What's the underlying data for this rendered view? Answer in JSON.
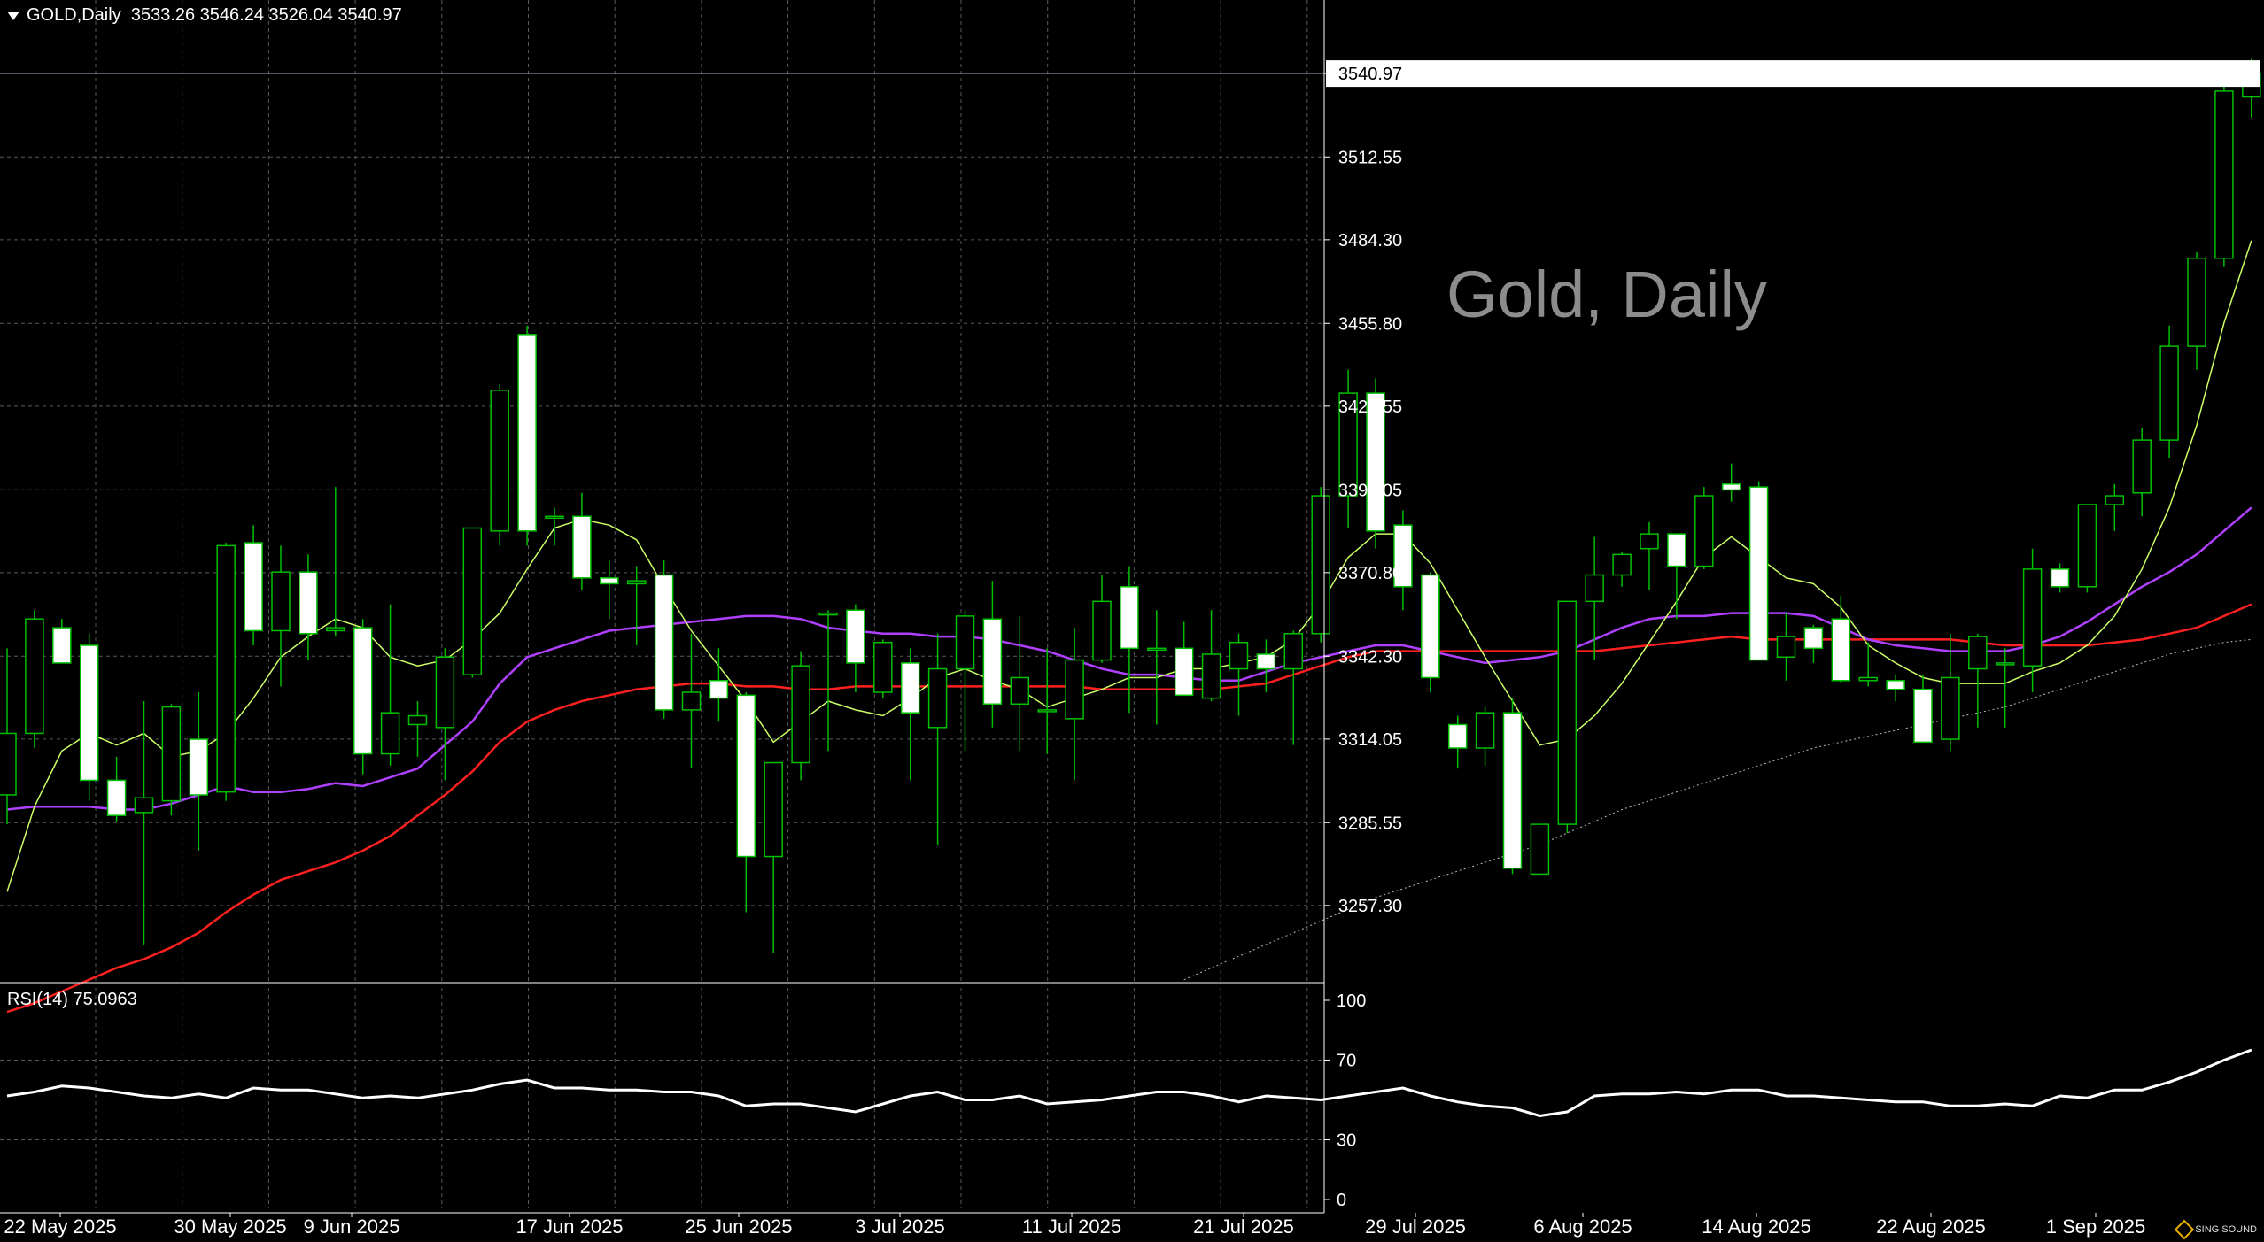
{
  "header": {
    "symbol": "GOLD,Daily",
    "open": "3533.26",
    "high": "3546.24",
    "low": "3526.04",
    "close": "3540.97"
  },
  "watermark": "Gold, Daily",
  "current_price_label": "3540.97",
  "rsi": {
    "label": "RSI(14)",
    "value": "75.0963"
  },
  "logo_text": "SING SOUND",
  "colors": {
    "background": "#000000",
    "grid": "#5a5a5a",
    "bull_candle": "#000000",
    "bear_candle": "#ffffff",
    "wick": "#00c000",
    "ma_fast": "#ccff66",
    "ma_mid": "#b040ff",
    "ma_slow": "#ff2020",
    "ma_long": "#bbbbbb",
    "rsi_line": "#ffffff",
    "text": "#ffffff"
  },
  "chart_data": {
    "type": "candlestick",
    "title": "GOLD,Daily",
    "ylim": [
      3231,
      3557
    ],
    "y_ticks": [
      "3540.97",
      "3512.55",
      "3484.30",
      "3455.80",
      "3427.55",
      "3399.05",
      "3370.80",
      "3342.30",
      "3314.05",
      "3285.55",
      "3257.30"
    ],
    "x_labels": [
      "22 May 2025",
      "30 May 2025",
      "9 Jun 2025",
      "17 Jun 2025",
      "25 Jun 2025",
      "3 Jul 2025",
      "11 Jul 2025",
      "21 Jul 2025",
      "29 Jul 2025",
      "6 Aug 2025",
      "14 Aug 2025",
      "22 Aug 2025",
      "1 Sep 2025"
    ],
    "candles": [
      {
        "o": 3295,
        "h": 3345,
        "l": 3285,
        "c": 3316
      },
      {
        "o": 3316,
        "h": 3358,
        "l": 3311,
        "c": 3355
      },
      {
        "o": 3352,
        "h": 3355,
        "l": 3340,
        "c": 3340
      },
      {
        "o": 3346,
        "h": 3350,
        "l": 3293,
        "c": 3300
      },
      {
        "o": 3300,
        "h": 3308,
        "l": 3286,
        "c": 3288
      },
      {
        "o": 3289,
        "h": 3327,
        "l": 3244,
        "c": 3294
      },
      {
        "o": 3293,
        "h": 3326,
        "l": 3288,
        "c": 3325
      },
      {
        "o": 3314,
        "h": 3330,
        "l": 3276,
        "c": 3295
      },
      {
        "o": 3296,
        "h": 3381,
        "l": 3293,
        "c": 3380
      },
      {
        "o": 3381,
        "h": 3387,
        "l": 3346,
        "c": 3351
      },
      {
        "o": 3351,
        "h": 3380,
        "l": 3332,
        "c": 3371
      },
      {
        "o": 3371,
        "h": 3377,
        "l": 3341,
        "c": 3350
      },
      {
        "o": 3351,
        "h": 3400,
        "l": 3349,
        "c": 3352
      },
      {
        "o": 3352,
        "h": 3355,
        "l": 3302,
        "c": 3309
      },
      {
        "o": 3309,
        "h": 3360,
        "l": 3305,
        "c": 3323
      },
      {
        "o": 3319,
        "h": 3327,
        "l": 3308,
        "c": 3322
      },
      {
        "o": 3318,
        "h": 3345,
        "l": 3300,
        "c": 3342
      },
      {
        "o": 3336,
        "h": 3386,
        "l": 3335,
        "c": 3386
      },
      {
        "o": 3385,
        "h": 3435,
        "l": 3380,
        "c": 3433
      },
      {
        "o": 3452,
        "h": 3455,
        "l": 3380,
        "c": 3385
      },
      {
        "o": 3390,
        "h": 3393,
        "l": 3380,
        "c": 3390
      },
      {
        "o": 3390,
        "h": 3398,
        "l": 3365,
        "c": 3369
      },
      {
        "o": 3369,
        "h": 3375,
        "l": 3355,
        "c": 3367
      },
      {
        "o": 3367,
        "h": 3373,
        "l": 3346,
        "c": 3368
      },
      {
        "o": 3370,
        "h": 3375,
        "l": 3321,
        "c": 3324
      },
      {
        "o": 3324,
        "h": 3350,
        "l": 3304,
        "c": 3330
      },
      {
        "o": 3334,
        "h": 3345,
        "l": 3320,
        "c": 3328
      },
      {
        "o": 3329,
        "h": 3330,
        "l": 3255,
        "c": 3274
      },
      {
        "o": 3274,
        "h": 3305,
        "l": 3241,
        "c": 3306
      },
      {
        "o": 3306,
        "h": 3344,
        "l": 3300,
        "c": 3339
      },
      {
        "o": 3357,
        "h": 3358,
        "l": 3310,
        "c": 3357
      },
      {
        "o": 3358,
        "h": 3360,
        "l": 3330,
        "c": 3340
      },
      {
        "o": 3330,
        "h": 3348,
        "l": 3328,
        "c": 3347
      },
      {
        "o": 3340,
        "h": 3345,
        "l": 3300,
        "c": 3323
      },
      {
        "o": 3318,
        "h": 3350,
        "l": 3278,
        "c": 3338
      },
      {
        "o": 3338,
        "h": 3358,
        "l": 3310,
        "c": 3356
      },
      {
        "o": 3355,
        "h": 3368,
        "l": 3318,
        "c": 3326
      },
      {
        "o": 3326,
        "h": 3356,
        "l": 3310,
        "c": 3335
      },
      {
        "o": 3324,
        "h": 3345,
        "l": 3309,
        "c": 3324
      },
      {
        "o": 3321,
        "h": 3352,
        "l": 3300,
        "c": 3341
      },
      {
        "o": 3341,
        "h": 3370,
        "l": 3340,
        "c": 3361
      },
      {
        "o": 3366,
        "h": 3373,
        "l": 3323,
        "c": 3345
      },
      {
        "o": 3345,
        "h": 3358,
        "l": 3319,
        "c": 3345
      },
      {
        "o": 3345,
        "h": 3354,
        "l": 3332,
        "c": 3329
      },
      {
        "o": 3328,
        "h": 3358,
        "l": 3327,
        "c": 3343
      },
      {
        "o": 3338,
        "h": 3350,
        "l": 3322,
        "c": 3347
      },
      {
        "o": 3343,
        "h": 3348,
        "l": 3330,
        "c": 3338
      },
      {
        "o": 3338,
        "h": 3351,
        "l": 3312,
        "c": 3350
      },
      {
        "o": 3350,
        "h": 3400,
        "l": 3347,
        "c": 3397
      },
      {
        "o": 3397,
        "h": 3440,
        "l": 3386,
        "c": 3432
      },
      {
        "o": 3432,
        "h": 3437,
        "l": 3379,
        "c": 3385
      },
      {
        "o": 3387,
        "h": 3392,
        "l": 3358,
        "c": 3366
      },
      {
        "o": 3370,
        "h": 3371,
        "l": 3330,
        "c": 3335
      },
      {
        "o": 3319,
        "h": 3322,
        "l": 3304,
        "c": 3311
      },
      {
        "o": 3311,
        "h": 3325,
        "l": 3305,
        "c": 3323
      },
      {
        "o": 3323,
        "h": 3328,
        "l": 3268,
        "c": 3270
      },
      {
        "o": 3268,
        "h": 3283,
        "l": 3270,
        "c": 3285
      },
      {
        "o": 3285,
        "h": 3361,
        "l": 3282,
        "c": 3361
      },
      {
        "o": 3361,
        "h": 3383,
        "l": 3341,
        "c": 3370
      },
      {
        "o": 3370,
        "h": 3378,
        "l": 3366,
        "c": 3377
      },
      {
        "o": 3379,
        "h": 3388,
        "l": 3365,
        "c": 3384
      },
      {
        "o": 3384,
        "h": 3383,
        "l": 3355,
        "c": 3373
      },
      {
        "o": 3373,
        "h": 3400,
        "l": 3372,
        "c": 3397
      },
      {
        "o": 3401,
        "h": 3408,
        "l": 3395,
        "c": 3399
      },
      {
        "o": 3400,
        "h": 3402,
        "l": 3342,
        "c": 3341
      },
      {
        "o": 3342,
        "h": 3357,
        "l": 3334,
        "c": 3349
      },
      {
        "o": 3352,
        "h": 3353,
        "l": 3340,
        "c": 3345
      },
      {
        "o": 3355,
        "h": 3363,
        "l": 3333,
        "c": 3334
      },
      {
        "o": 3334,
        "h": 3347,
        "l": 3332,
        "c": 3335
      },
      {
        "o": 3334,
        "h": 3336,
        "l": 3327,
        "c": 3331
      },
      {
        "o": 3331,
        "h": 3336,
        "l": 3313,
        "c": 3313
      },
      {
        "o": 3314,
        "h": 3350,
        "l": 3310,
        "c": 3335
      },
      {
        "o": 3338,
        "h": 3350,
        "l": 3318,
        "c": 3349
      },
      {
        "o": 3340,
        "h": 3345,
        "l": 3318,
        "c": 3340
      },
      {
        "o": 3339,
        "h": 3379,
        "l": 3330,
        "c": 3372
      },
      {
        "o": 3372,
        "h": 3374,
        "l": 3364,
        "c": 3366
      },
      {
        "o": 3366,
        "h": 3394,
        "l": 3364,
        "c": 3394
      },
      {
        "o": 3394,
        "h": 3401,
        "l": 3385,
        "c": 3397
      },
      {
        "o": 3398,
        "h": 3420,
        "l": 3390,
        "c": 3416
      },
      {
        "o": 3416,
        "h": 3455,
        "l": 3410,
        "c": 3448
      },
      {
        "o": 3448,
        "h": 3480,
        "l": 3440,
        "c": 3478
      },
      {
        "o": 3478,
        "h": 3545,
        "l": 3475,
        "c": 3535
      },
      {
        "o": 3533,
        "h": 3546,
        "l": 3526,
        "c": 3541
      }
    ],
    "ma_fast": [
      3262,
      3291,
      3310,
      3316,
      3312,
      3316,
      3308,
      3310,
      3316,
      3328,
      3342,
      3349,
      3355,
      3352,
      3342,
      3339,
      3341,
      3348,
      3357,
      3372,
      3386,
      3389,
      3387,
      3382,
      3366,
      3351,
      3339,
      3327,
      3313,
      3320,
      3327,
      3324,
      3322,
      3328,
      3335,
      3338,
      3334,
      3331,
      3325,
      3328,
      3331,
      3335,
      3335,
      3338,
      3338,
      3340,
      3342,
      3348,
      3360,
      3376,
      3384,
      3384,
      3374,
      3358,
      3342,
      3327,
      3312,
      3314,
      3322,
      3333,
      3347,
      3361,
      3376,
      3383,
      3376,
      3369,
      3367,
      3359,
      3346,
      3340,
      3335,
      3333,
      3333,
      3333,
      3337,
      3340,
      3346,
      3356,
      3372,
      3393,
      3421,
      3456,
      3484
    ],
    "ma_mid": [
      3290,
      3291,
      3291,
      3291,
      3290,
      3290,
      3292,
      3295,
      3298,
      3296,
      3296,
      3297,
      3299,
      3298,
      3301,
      3304,
      3312,
      3320,
      3333,
      3342,
      3345,
      3348,
      3351,
      3352,
      3353,
      3354,
      3355,
      3356,
      3356,
      3355,
      3352,
      3351,
      3350,
      3350,
      3349,
      3349,
      3348,
      3346,
      3344,
      3341,
      3338,
      3336,
      3336,
      3335,
      3334,
      3334,
      3337,
      3340,
      3342,
      3344,
      3346,
      3346,
      3344,
      3342,
      3340,
      3341,
      3342,
      3344,
      3348,
      3352,
      3355,
      3356,
      3356,
      3357,
      3357,
      3357,
      3356,
      3352,
      3348,
      3346,
      3345,
      3344,
      3344,
      3344,
      3346,
      3349,
      3354,
      3360,
      3366,
      3371,
      3377,
      3385,
      3393
    ],
    "ma_slow": [
      3221,
      3224,
      3228,
      3232,
      3236,
      3239,
      3243,
      3248,
      3255,
      3261,
      3266,
      3269,
      3272,
      3276,
      3281,
      3288,
      3295,
      3303,
      3313,
      3320,
      3324,
      3327,
      3329,
      3331,
      3332,
      3333,
      3333,
      3332,
      3332,
      3331,
      3331,
      3332,
      3332,
      3332,
      3332,
      3332,
      3332,
      3332,
      3332,
      3332,
      3331,
      3331,
      3331,
      3331,
      3331,
      3332,
      3333,
      3336,
      3339,
      3342,
      3344,
      3344,
      3344,
      3344,
      3344,
      3344,
      3344,
      3344,
      3344,
      3345,
      3346,
      3347,
      3348,
      3349,
      3348,
      3348,
      3348,
      3348,
      3348,
      3348,
      3348,
      3348,
      3347,
      3346,
      3346,
      3346,
      3346,
      3347,
      3348,
      3350,
      3352,
      3356,
      3360
    ],
    "ma_long": [
      null,
      null,
      null,
      null,
      null,
      null,
      null,
      null,
      null,
      null,
      null,
      null,
      null,
      null,
      null,
      null,
      null,
      null,
      null,
      null,
      null,
      null,
      null,
      null,
      null,
      null,
      null,
      null,
      null,
      null,
      null,
      null,
      null,
      null,
      null,
      null,
      null,
      null,
      null,
      null,
      null,
      null,
      null,
      3232,
      3236,
      3240,
      3244,
      3248,
      3252,
      3256,
      3260,
      3263,
      3266,
      3269,
      3272,
      3275,
      3278,
      3282,
      3286,
      3290,
      3293,
      3296,
      3299,
      3302,
      3305,
      3308,
      3311,
      3313,
      3315,
      3317,
      3319,
      3321,
      3323,
      3325,
      3328,
      3331,
      3334,
      3337,
      3340,
      3343,
      3345,
      3347,
      3348
    ],
    "rsi_ylim": [
      0,
      100
    ],
    "rsi_ticks": [
      "100",
      "70",
      "30",
      "0"
    ],
    "rsi": [
      52,
      54,
      57,
      56,
      54,
      52,
      51,
      53,
      51,
      56,
      55,
      55,
      53,
      51,
      52,
      51,
      53,
      55,
      58,
      60,
      56,
      56,
      55,
      55,
      54,
      54,
      52,
      47,
      48,
      48,
      46,
      44,
      48,
      52,
      54,
      50,
      50,
      52,
      48,
      49,
      50,
      52,
      54,
      54,
      52,
      49,
      52,
      51,
      50,
      52,
      54,
      56,
      52,
      49,
      47,
      46,
      42,
      44,
      52,
      53,
      53,
      54,
      53,
      55,
      55,
      52,
      52,
      51,
      50,
      49,
      49,
      47,
      47,
      48,
      47,
      52,
      51,
      55,
      55,
      59,
      64,
      70,
      75.1
    ]
  }
}
